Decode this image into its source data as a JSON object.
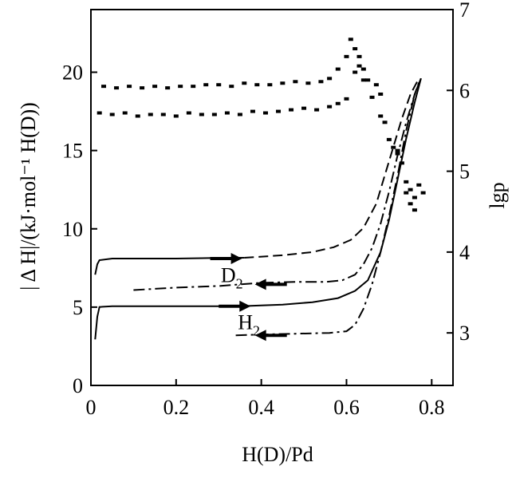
{
  "chart_data": {
    "type": "scatter",
    "xlabel": "H(D)/Pd",
    "ylabel_left": "| Δ H|/(kJ·mol⁻¹ H(D))",
    "ylabel_right": "lgp",
    "xlim": [
      0,
      0.85
    ],
    "ylim_left": [
      0,
      24
    ],
    "ylim_right": [
      2.35,
      7
    ],
    "x_ticks": [
      "0",
      "0.2",
      "0.4",
      "0.6",
      "0.8"
    ],
    "x_tick_values": [
      0,
      0.2,
      0.4,
      0.6,
      0.8
    ],
    "y_left_ticks": [
      "0",
      "5",
      "10",
      "15",
      "20"
    ],
    "y_left_tick_values": [
      0,
      5,
      10,
      15,
      20
    ],
    "y_right_ticks": [
      "3",
      "4",
      "5",
      "6",
      "7"
    ],
    "y_right_tick_values": [
      3,
      4,
      5,
      6,
      7
    ],
    "annotations": [
      {
        "text": "D",
        "sub": "2",
        "x": 0.305,
        "y_left": 6.6
      },
      {
        "text": "H",
        "sub": "2",
        "x": 0.345,
        "y_left": 3.6
      }
    ],
    "series": [
      {
        "axis": "left",
        "style": "markers",
        "points": [
          [
            0.03,
            19.1
          ],
          [
            0.06,
            19.0
          ],
          [
            0.09,
            19.1
          ],
          [
            0.12,
            19.0
          ],
          [
            0.15,
            19.1
          ],
          [
            0.18,
            19.0
          ],
          [
            0.21,
            19.1
          ],
          [
            0.24,
            19.1
          ],
          [
            0.27,
            19.2
          ],
          [
            0.3,
            19.2
          ],
          [
            0.33,
            19.1
          ],
          [
            0.36,
            19.3
          ],
          [
            0.39,
            19.2
          ],
          [
            0.42,
            19.2
          ],
          [
            0.45,
            19.3
          ],
          [
            0.48,
            19.4
          ],
          [
            0.51,
            19.3
          ],
          [
            0.54,
            19.4
          ],
          [
            0.56,
            19.6
          ],
          [
            0.58,
            20.2
          ],
          [
            0.6,
            21.0
          ],
          [
            0.61,
            22.1
          ],
          [
            0.62,
            21.5
          ],
          [
            0.63,
            21.0
          ],
          [
            0.64,
            20.2
          ],
          [
            0.65,
            19.5
          ],
          [
            0.67,
            19.2
          ],
          [
            0.68,
            18.6
          ]
        ]
      },
      {
        "axis": "left",
        "style": "markers",
        "points": [
          [
            0.02,
            17.4
          ],
          [
            0.05,
            17.3
          ],
          [
            0.08,
            17.4
          ],
          [
            0.11,
            17.2
          ],
          [
            0.14,
            17.3
          ],
          [
            0.17,
            17.3
          ],
          [
            0.2,
            17.2
          ],
          [
            0.23,
            17.4
          ],
          [
            0.26,
            17.3
          ],
          [
            0.29,
            17.3
          ],
          [
            0.32,
            17.4
          ],
          [
            0.35,
            17.3
          ],
          [
            0.38,
            17.5
          ],
          [
            0.41,
            17.4
          ],
          [
            0.44,
            17.5
          ],
          [
            0.47,
            17.6
          ],
          [
            0.5,
            17.7
          ],
          [
            0.53,
            17.6
          ],
          [
            0.56,
            17.8
          ],
          [
            0.58,
            18.0
          ],
          [
            0.6,
            18.3
          ],
          [
            0.62,
            20.0
          ],
          [
            0.63,
            20.4
          ],
          [
            0.64,
            19.5
          ],
          [
            0.66,
            18.4
          ],
          [
            0.68,
            17.2
          ],
          [
            0.7,
            15.7
          ],
          [
            0.72,
            15.0
          ]
        ]
      },
      {
        "axis": "left",
        "style": "markers",
        "points": [
          [
            0.69,
            16.8
          ],
          [
            0.71,
            15.2
          ],
          [
            0.72,
            14.8
          ],
          [
            0.73,
            14.2
          ],
          [
            0.74,
            13.0
          ],
          [
            0.74,
            12.3
          ],
          [
            0.75,
            12.5
          ],
          [
            0.75,
            11.6
          ],
          [
            0.76,
            12.0
          ],
          [
            0.77,
            12.8
          ],
          [
            0.78,
            12.3
          ],
          [
            0.76,
            11.2
          ]
        ]
      },
      {
        "axis": "right",
        "style": "solid",
        "points": [
          [
            0.01,
            2.92
          ],
          [
            0.015,
            3.2
          ],
          [
            0.02,
            3.32
          ],
          [
            0.05,
            3.33
          ],
          [
            0.2,
            3.33
          ],
          [
            0.35,
            3.33
          ],
          [
            0.45,
            3.35
          ],
          [
            0.52,
            3.38
          ],
          [
            0.58,
            3.43
          ],
          [
            0.62,
            3.52
          ],
          [
            0.65,
            3.65
          ],
          [
            0.68,
            4.0
          ],
          [
            0.7,
            4.4
          ],
          [
            0.72,
            4.9
          ],
          [
            0.74,
            5.4
          ],
          [
            0.76,
            5.85
          ],
          [
            0.775,
            6.15
          ]
        ]
      },
      {
        "axis": "right",
        "style": "solid",
        "points": [
          [
            0.01,
            3.72
          ],
          [
            0.015,
            3.85
          ],
          [
            0.02,
            3.9
          ],
          [
            0.05,
            3.92
          ],
          [
            0.2,
            3.92
          ],
          [
            0.32,
            3.93
          ],
          [
            0.36,
            3.93
          ]
        ]
      },
      {
        "axis": "right",
        "style": "dashed",
        "points": [
          [
            0.36,
            3.93
          ],
          [
            0.45,
            3.96
          ],
          [
            0.52,
            4.0
          ],
          [
            0.57,
            4.06
          ],
          [
            0.61,
            4.15
          ],
          [
            0.64,
            4.3
          ],
          [
            0.67,
            4.6
          ],
          [
            0.69,
            4.95
          ],
          [
            0.71,
            5.3
          ],
          [
            0.73,
            5.65
          ],
          [
            0.75,
            5.95
          ],
          [
            0.77,
            6.15
          ]
        ]
      },
      {
        "axis": "right",
        "style": "dashdot",
        "points": [
          [
            0.34,
            2.97
          ],
          [
            0.4,
            2.98
          ],
          [
            0.48,
            2.99
          ],
          [
            0.56,
            3.0
          ],
          [
            0.6,
            3.02
          ],
          [
            0.62,
            3.1
          ],
          [
            0.64,
            3.3
          ],
          [
            0.66,
            3.6
          ],
          [
            0.68,
            4.0
          ],
          [
            0.7,
            4.45
          ],
          [
            0.72,
            4.95
          ],
          [
            0.74,
            5.5
          ],
          [
            0.76,
            5.95
          ],
          [
            0.775,
            6.15
          ]
        ]
      },
      {
        "axis": "right",
        "style": "dashdot",
        "points": [
          [
            0.1,
            3.53
          ],
          [
            0.2,
            3.56
          ],
          [
            0.3,
            3.58
          ],
          [
            0.4,
            3.62
          ],
          [
            0.48,
            3.63
          ],
          [
            0.55,
            3.63
          ],
          [
            0.59,
            3.65
          ],
          [
            0.62,
            3.72
          ],
          [
            0.64,
            3.85
          ],
          [
            0.66,
            4.05
          ],
          [
            0.68,
            4.35
          ],
          [
            0.7,
            4.75
          ],
          [
            0.72,
            5.2
          ],
          [
            0.74,
            5.6
          ],
          [
            0.76,
            5.95
          ],
          [
            0.77,
            6.1
          ]
        ]
      }
    ],
    "arrows": [
      {
        "axis": "right",
        "from": [
          0.28,
          3.92
        ],
        "to": [
          0.34,
          3.92
        ],
        "direction": "right"
      },
      {
        "axis": "right",
        "from": [
          0.46,
          3.6
        ],
        "to": [
          0.4,
          3.6
        ],
        "direction": "left"
      },
      {
        "axis": "right",
        "from": [
          0.3,
          3.33
        ],
        "to": [
          0.36,
          3.33
        ],
        "direction": "right"
      },
      {
        "axis": "right",
        "from": [
          0.46,
          2.97
        ],
        "to": [
          0.4,
          2.97
        ],
        "direction": "left"
      }
    ]
  }
}
